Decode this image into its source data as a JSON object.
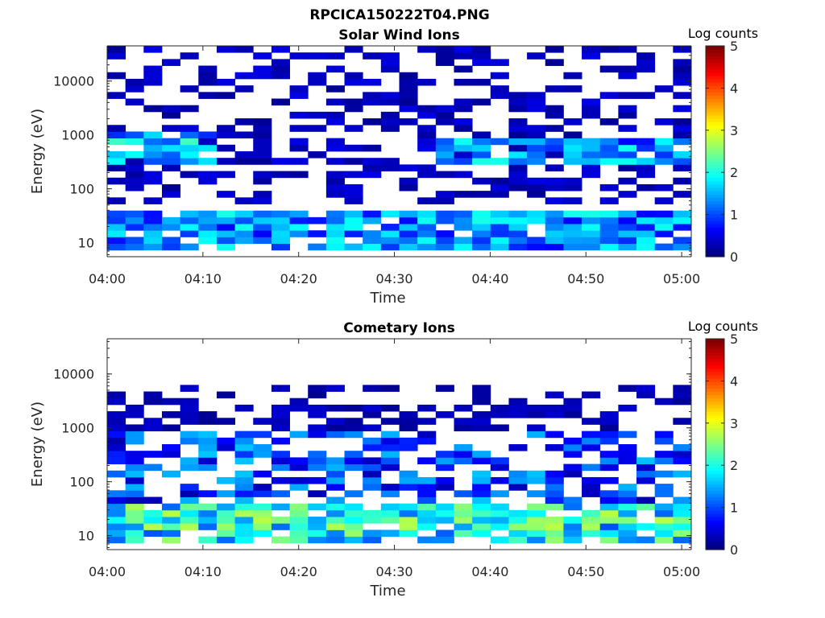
{
  "figure_title": "RPCICA150222T04.PNG",
  "chart_data": [
    {
      "type": "heatmap",
      "title": "Solar Wind Ions",
      "xlabel": "Time",
      "ylabel": "Energy (eV)",
      "yscale": "log",
      "ylim": [
        5.5,
        45000
      ],
      "xlim": [
        "04:00",
        "05:01"
      ],
      "x_ticks": [
        "04:00",
        "04:10",
        "04:20",
        "04:30",
        "04:40",
        "04:50",
        "05:00"
      ],
      "y_ticks": [
        "10",
        "100",
        "1000",
        "10000"
      ],
      "colorbar": {
        "label": "Log counts",
        "range": [
          0,
          5
        ],
        "ticks": [
          "0",
          "1",
          "2",
          "3",
          "4",
          "5"
        ],
        "colormap": "jet"
      },
      "columns": 32,
      "energy_rows": 32,
      "features": [
        {
          "energy_range_eV": [
            7,
            40
          ],
          "time_range": [
            "04:00",
            "05:01"
          ],
          "log_counts": [
            0.6,
            2.0
          ]
        },
        {
          "energy_range_eV": [
            250,
            1200
          ],
          "time_range": [
            "04:00",
            "04:12"
          ],
          "log_counts": [
            0.8,
            2.2
          ]
        },
        {
          "energy_range_eV": [
            300,
            900
          ],
          "time_range": [
            "04:35",
            "05:01"
          ],
          "log_counts": [
            0.6,
            2.0
          ]
        },
        {
          "energy_range_eV": [
            60,
            45000
          ],
          "time_range": [
            "04:00",
            "05:01"
          ],
          "log_counts": [
            0.1,
            0.5
          ]
        }
      ]
    },
    {
      "type": "heatmap",
      "title": "Cometary Ions",
      "xlabel": "Time",
      "ylabel": "Energy (eV)",
      "yscale": "log",
      "ylim": [
        5.5,
        45000
      ],
      "xlim": [
        "04:00",
        "05:01"
      ],
      "x_ticks": [
        "04:00",
        "04:10",
        "04:20",
        "04:30",
        "04:40",
        "04:50",
        "05:00"
      ],
      "y_ticks": [
        "10",
        "100",
        "1000",
        "10000"
      ],
      "colorbar": {
        "label": "Log counts",
        "range": [
          0,
          5
        ],
        "ticks": [
          "0",
          "1",
          "2",
          "3",
          "4",
          "5"
        ],
        "colormap": "jet"
      },
      "columns": 32,
      "energy_rows": 32,
      "features": [
        {
          "energy_range_eV": [
            7,
            40
          ],
          "time_range": [
            "04:00",
            "05:01"
          ],
          "log_counts": [
            1.0,
            2.8
          ]
        },
        {
          "energy_range_eV": [
            40,
            900
          ],
          "time_range": [
            "04:00",
            "05:01"
          ],
          "log_counts": [
            0.2,
            1.6
          ]
        },
        {
          "energy_range_eV": [
            1000,
            7000
          ],
          "time_range": [
            "04:00",
            "05:01"
          ],
          "log_counts": [
            0.1,
            0.4
          ]
        }
      ]
    }
  ]
}
